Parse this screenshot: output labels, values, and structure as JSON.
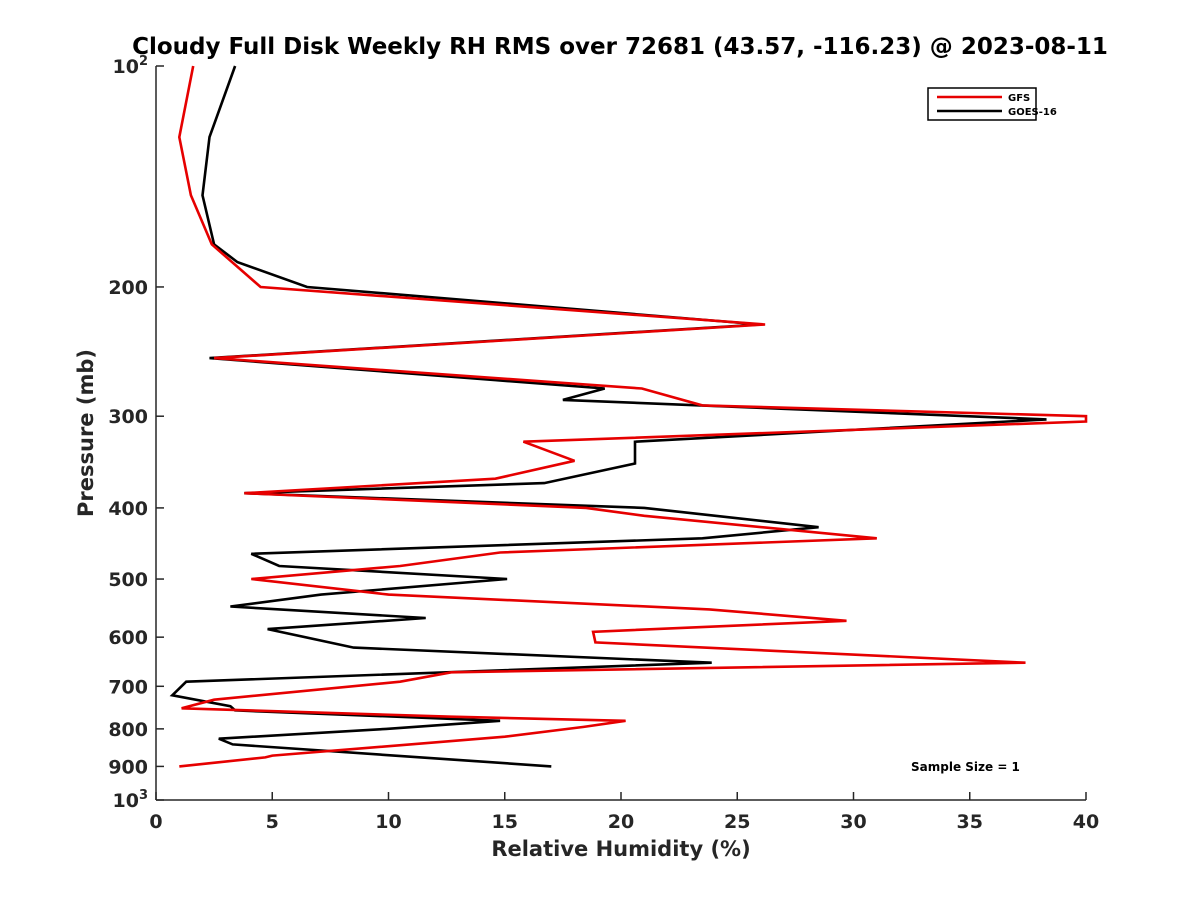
{
  "chart_data": {
    "type": "line",
    "title": "Cloudy Full Disk Weekly RH RMS over 72681 (43.57, -116.23) @ 2023-08-11",
    "xlabel": "Relative Humidity (%)",
    "ylabel": "Pressure (mb)",
    "xlim": [
      0,
      40
    ],
    "ylim": [
      100,
      1000
    ],
    "y_scale": "log",
    "y_reversed": true,
    "grid": false,
    "legend_position": "top-right",
    "x_ticks": [
      0,
      5,
      10,
      15,
      20,
      25,
      30,
      35,
      40
    ],
    "y_ticks": [
      100,
      200,
      300,
      400,
      500,
      600,
      700,
      800,
      900,
      1000
    ],
    "y_tick_labels": [
      "10^2",
      "200",
      "300",
      "400",
      "500",
      "600",
      "700",
      "800",
      "900",
      "10^3"
    ],
    "annotation": "Sample Size = 1",
    "series": [
      {
        "name": "GFS",
        "color": "#e60000",
        "points": [
          [
            1.6,
            100
          ],
          [
            1.0,
            125
          ],
          [
            1.5,
            150
          ],
          [
            2.4,
            175
          ],
          [
            4.5,
            200
          ],
          [
            26.2,
            225
          ],
          [
            2.5,
            250
          ],
          [
            20.9,
            275
          ],
          [
            23.5,
            290
          ],
          [
            40.0,
            300
          ],
          [
            40.0,
            305
          ],
          [
            15.8,
            325
          ],
          [
            18.0,
            345
          ],
          [
            14.6,
            365
          ],
          [
            3.8,
            382
          ],
          [
            18.5,
            400
          ],
          [
            21.0,
            410
          ],
          [
            31.0,
            440
          ],
          [
            14.8,
            460
          ],
          [
            10.5,
            480
          ],
          [
            4.1,
            500
          ],
          [
            10.0,
            525
          ],
          [
            23.8,
            550
          ],
          [
            29.7,
            570
          ],
          [
            18.8,
            590
          ],
          [
            18.9,
            610
          ],
          [
            37.4,
            650
          ],
          [
            12.7,
            670
          ],
          [
            10.5,
            690
          ],
          [
            2.5,
            730
          ],
          [
            1.1,
            750
          ],
          [
            12.7,
            770
          ],
          [
            20.2,
            780
          ],
          [
            18.4,
            795
          ],
          [
            15.0,
            820
          ],
          [
            5.0,
            870
          ],
          [
            4.7,
            875
          ],
          [
            1.0,
            900
          ]
        ]
      },
      {
        "name": "GOES-16",
        "color": "#000000",
        "points": [
          [
            3.4,
            100
          ],
          [
            2.3,
            125
          ],
          [
            2.0,
            150
          ],
          [
            2.5,
            175
          ],
          [
            3.5,
            185
          ],
          [
            6.5,
            200
          ],
          [
            26.0,
            225
          ],
          [
            2.3,
            250
          ],
          [
            19.3,
            275
          ],
          [
            17.5,
            285
          ],
          [
            38.3,
            303
          ],
          [
            20.6,
            325
          ],
          [
            20.6,
            348
          ],
          [
            16.7,
            370
          ],
          [
            3.8,
            382
          ],
          [
            21.0,
            400
          ],
          [
            28.5,
            425
          ],
          [
            23.5,
            440
          ],
          [
            4.1,
            462
          ],
          [
            5.3,
            480
          ],
          [
            15.1,
            500
          ],
          [
            7.1,
            525
          ],
          [
            3.2,
            545
          ],
          [
            11.6,
            565
          ],
          [
            4.8,
            585
          ],
          [
            8.5,
            620
          ],
          [
            23.9,
            650
          ],
          [
            1.3,
            690
          ],
          [
            0.7,
            720
          ],
          [
            3.2,
            745
          ],
          [
            3.4,
            755
          ],
          [
            14.8,
            780
          ],
          [
            9.9,
            800
          ],
          [
            2.7,
            825
          ],
          [
            3.3,
            840
          ],
          [
            17.0,
            900
          ]
        ]
      }
    ]
  }
}
